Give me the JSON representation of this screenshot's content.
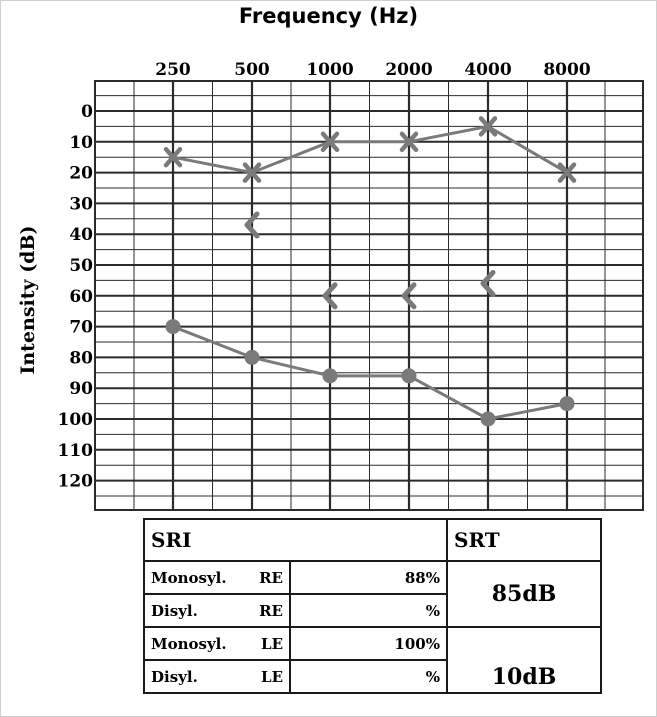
{
  "chart_data": {
    "type": "line",
    "title": "",
    "xlabel": "Frequency (Hz)",
    "ylabel": "Intensity (dB)",
    "categories": [
      "250",
      "500",
      "1000",
      "2000",
      "4000",
      "8000"
    ],
    "ylim": [
      -10,
      130
    ],
    "y_ticks": [
      0,
      10,
      20,
      30,
      40,
      50,
      60,
      70,
      80,
      90,
      100,
      110,
      120
    ],
    "y_inverted": true,
    "grid": true,
    "series": [
      {
        "marker": "x",
        "connected": true,
        "values": [
          15,
          20,
          10,
          10,
          5,
          20
        ]
      },
      {
        "marker": "<",
        "connected": false,
        "values": [
          null,
          37,
          60,
          60,
          56,
          null
        ]
      },
      {
        "marker": "o",
        "connected": true,
        "values": [
          70,
          80,
          86,
          86,
          100,
          95
        ]
      }
    ],
    "line_color": "#7a7a7a",
    "grid_color": "#2b2b2b"
  },
  "table": {
    "sri_header": "SRI",
    "srt_header": "SRT",
    "rows": [
      {
        "test": "Monosyl.",
        "ear": "RE",
        "value": "88%"
      },
      {
        "test": "Disyl.",
        "ear": "RE",
        "value": "%"
      },
      {
        "test": "Monosyl.",
        "ear": "LE",
        "value": "100%"
      },
      {
        "test": "Disyl.",
        "ear": "LE",
        "value": "%"
      }
    ],
    "srt_right": "85dB",
    "srt_left": "10dB"
  }
}
